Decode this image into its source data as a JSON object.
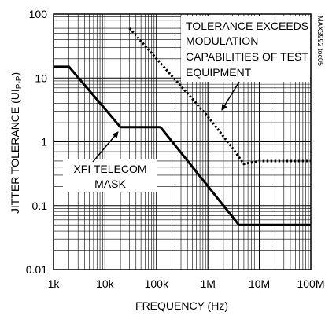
{
  "chart_data": {
    "type": "line",
    "xscale": "log",
    "yscale": "log",
    "xlim": [
      1000,
      100000000
    ],
    "ylim": [
      0.01,
      100
    ],
    "grid": true,
    "xlabel": "FREQUENCY (Hz)",
    "ylabel": "JITTER TOLERANCE (UI",
    "ylabel_sub": "P-P",
    "ylabel_close": ")",
    "x_tick_labels": [
      "1k",
      "10k",
      "100k",
      "1M",
      "10M",
      "100M"
    ],
    "y_tick_labels": [
      "0.01",
      "0.1",
      "1",
      "10",
      "100"
    ],
    "reference_id": "MAX3992 toc05",
    "annotations": {
      "mask_label": [
        "XFI TELECOM",
        "MASK"
      ],
      "limit_label": [
        "TOLERANCE EXCEEDS",
        "MODULATION",
        "CAPABILITIES OF TEST",
        "EQUIPMENT"
      ]
    },
    "series": [
      {
        "style": "solid",
        "x": [
          1000,
          2000,
          20000,
          120000,
          4000000,
          100000000
        ],
        "y": [
          15,
          15,
          1.7,
          1.7,
          0.05,
          0.05
        ]
      },
      {
        "style": "dotted",
        "x": [
          30000,
          1000000,
          3000000,
          5000000,
          10000000,
          100000000
        ],
        "y": [
          60,
          2.5,
          0.8,
          0.45,
          0.5,
          0.5
        ]
      }
    ]
  }
}
